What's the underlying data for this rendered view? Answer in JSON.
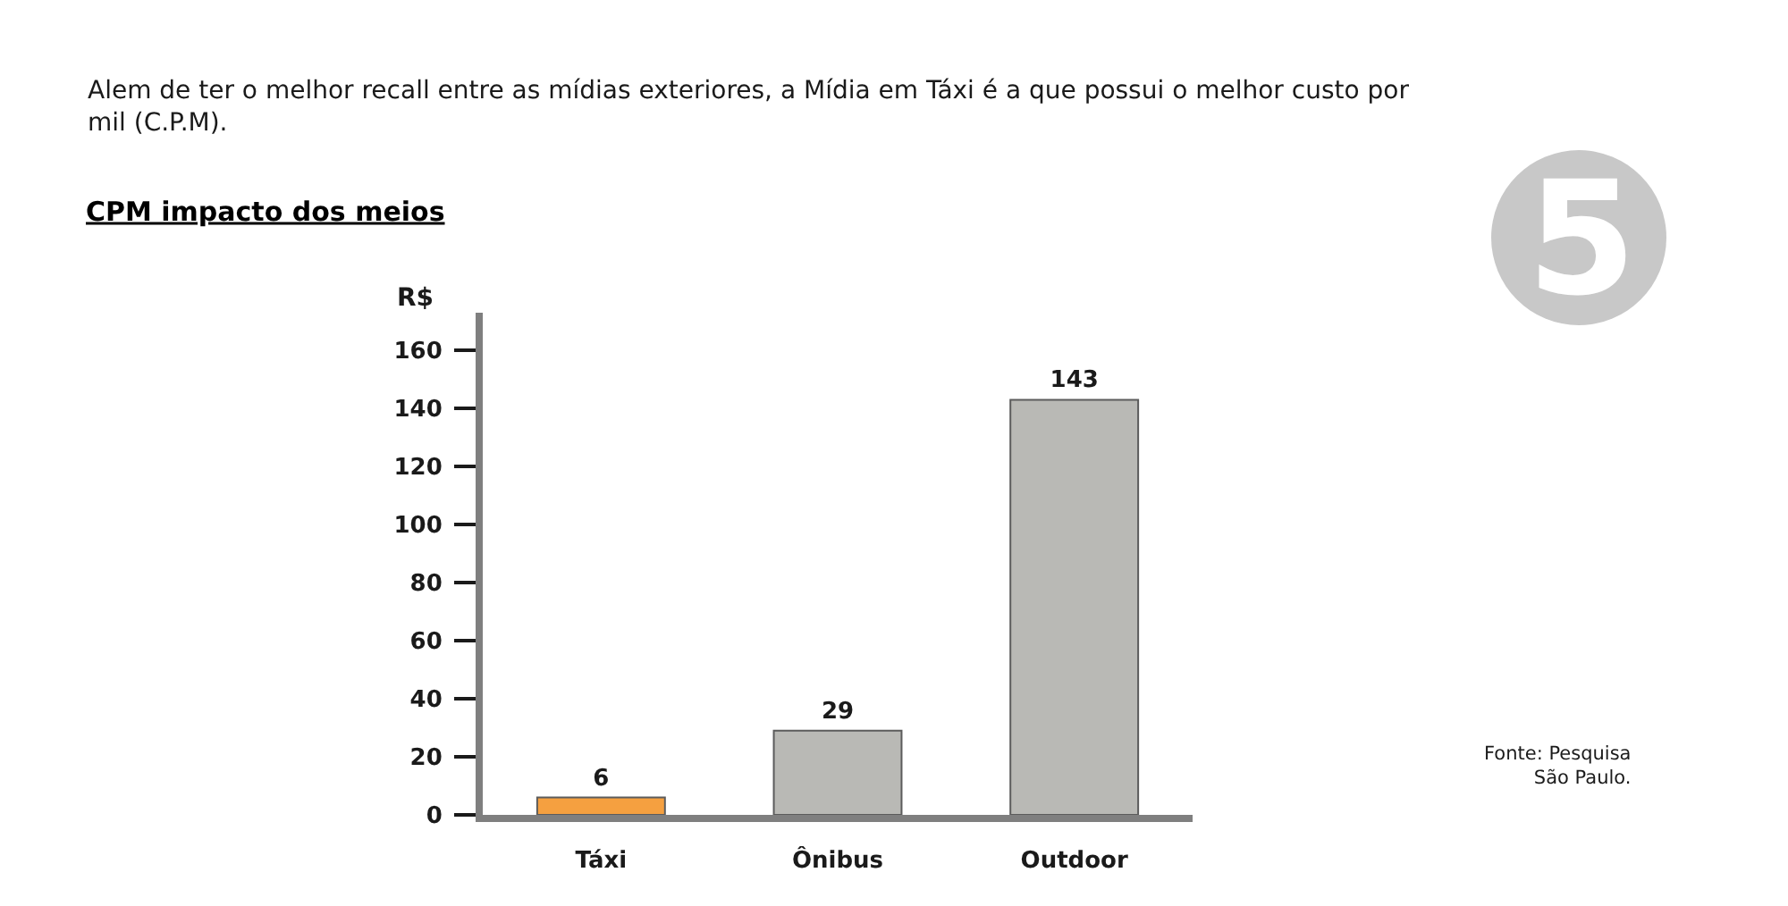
{
  "chart_data": {
    "type": "bar",
    "title": "CPM impacto dos meios",
    "subtitle": "Alem de ter o melhor recall entre as mídias exteriores, a Mídia em Táxi é a que possui o melhor custo por mil (C.P.M).",
    "ylabel": "R$",
    "annotations": [
      "Fonte: Pesquisa\nSão Paulo.",
      "5"
    ],
    "categories": [
      "Táxi",
      "Ônibus",
      "Outdoor"
    ],
    "values": [
      6,
      29,
      143
    ],
    "colors": [
      "#f5a040",
      "#b9b9b5",
      "#b9b9b5"
    ],
    "ylim": [
      0,
      173
    ],
    "yticks": [
      0,
      20,
      40,
      60,
      80,
      100,
      120,
      140,
      160
    ],
    "data_labels": true
  }
}
